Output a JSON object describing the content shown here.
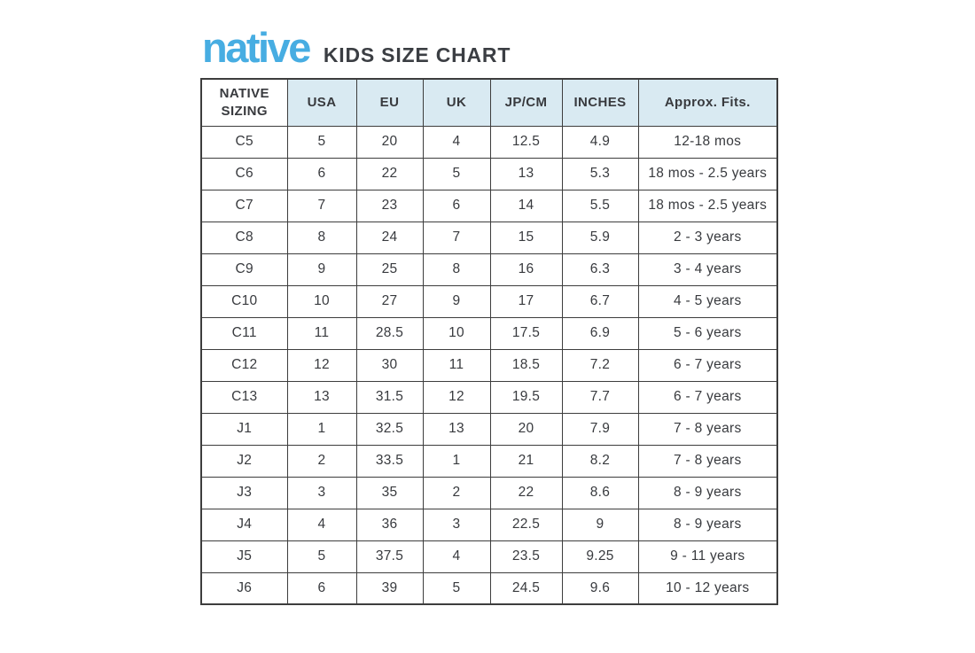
{
  "brand": {
    "logo_text": "native",
    "logo_color": "#47ade2",
    "title": "KIDS SIZE CHART",
    "title_color": "#3b3e43"
  },
  "table": {
    "header_bg": "#d9eaf2",
    "border_color": "#3d3d3d",
    "text_color": "#383a3e",
    "columns": [
      "NATIVE SIZING",
      "USA",
      "EU",
      "UK",
      "JP/CM",
      "INCHES",
      "Approx. Fits."
    ],
    "rows": [
      [
        "C5",
        "5",
        "20",
        "4",
        "12.5",
        "4.9",
        "12-18 mos"
      ],
      [
        "C6",
        "6",
        "22",
        "5",
        "13",
        "5.3",
        "18 mos - 2.5 years"
      ],
      [
        "C7",
        "7",
        "23",
        "6",
        "14",
        "5.5",
        "18 mos - 2.5 years"
      ],
      [
        "C8",
        "8",
        "24",
        "7",
        "15",
        "5.9",
        "2 - 3 years"
      ],
      [
        "C9",
        "9",
        "25",
        "8",
        "16",
        "6.3",
        "3 - 4 years"
      ],
      [
        "C10",
        "10",
        "27",
        "9",
        "17",
        "6.7",
        "4 - 5 years"
      ],
      [
        "C11",
        "11",
        "28.5",
        "10",
        "17.5",
        "6.9",
        "5 - 6 years"
      ],
      [
        "C12",
        "12",
        "30",
        "11",
        "18.5",
        "7.2",
        "6 - 7 years"
      ],
      [
        "C13",
        "13",
        "31.5",
        "12",
        "19.5",
        "7.7",
        "6 - 7 years"
      ],
      [
        "J1",
        "1",
        "32.5",
        "13",
        "20",
        "7.9",
        "7 - 8 years"
      ],
      [
        "J2",
        "2",
        "33.5",
        "1",
        "21",
        "8.2",
        "7 - 8 years"
      ],
      [
        "J3",
        "3",
        "35",
        "2",
        "22",
        "8.6",
        "8 - 9 years"
      ],
      [
        "J4",
        "4",
        "36",
        "3",
        "22.5",
        "9",
        "8 - 9 years"
      ],
      [
        "J5",
        "5",
        "37.5",
        "4",
        "23.5",
        "9.25",
        "9 - 11 years"
      ],
      [
        "J6",
        "6",
        "39",
        "5",
        "24.5",
        "9.6",
        "10 - 12 years"
      ]
    ]
  }
}
